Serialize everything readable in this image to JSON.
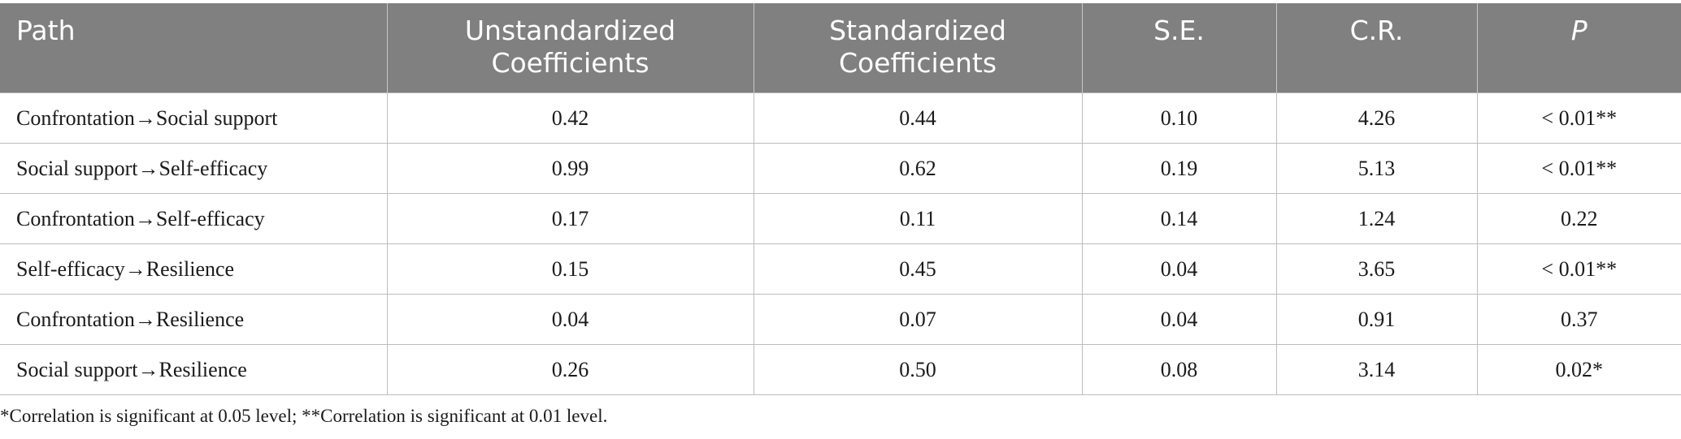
{
  "table": {
    "headers": [
      "Path",
      "Unstandardized Coefficients",
      "Standardized Coefficients",
      "S.E.",
      "C.R.",
      "P"
    ],
    "rows": [
      [
        "Confrontation→Social support",
        "0.42",
        "0.44",
        "0.10",
        "4.26",
        "< 0.01**"
      ],
      [
        "Social support→Self-efficacy",
        "0.99",
        "0.62",
        "0.19",
        "5.13",
        "< 0.01**"
      ],
      [
        "Confrontation→Self-efficacy",
        "0.17",
        "0.11",
        "0.14",
        "1.24",
        "0.22"
      ],
      [
        "Self-efficacy→Resilience",
        "0.15",
        "0.45",
        "0.04",
        "3.65",
        "< 0.01**"
      ],
      [
        "Confrontation→Resilience",
        "0.04",
        "0.07",
        "0.04",
        "0.91",
        "0.37"
      ],
      [
        "Social support→Resilience",
        "0.26",
        "0.50",
        "0.08",
        "3.14",
        "0.02*"
      ]
    ]
  },
  "footnote": "*Correlation is significant at 0.05 level; **Correlation is significant at 0.01 level."
}
